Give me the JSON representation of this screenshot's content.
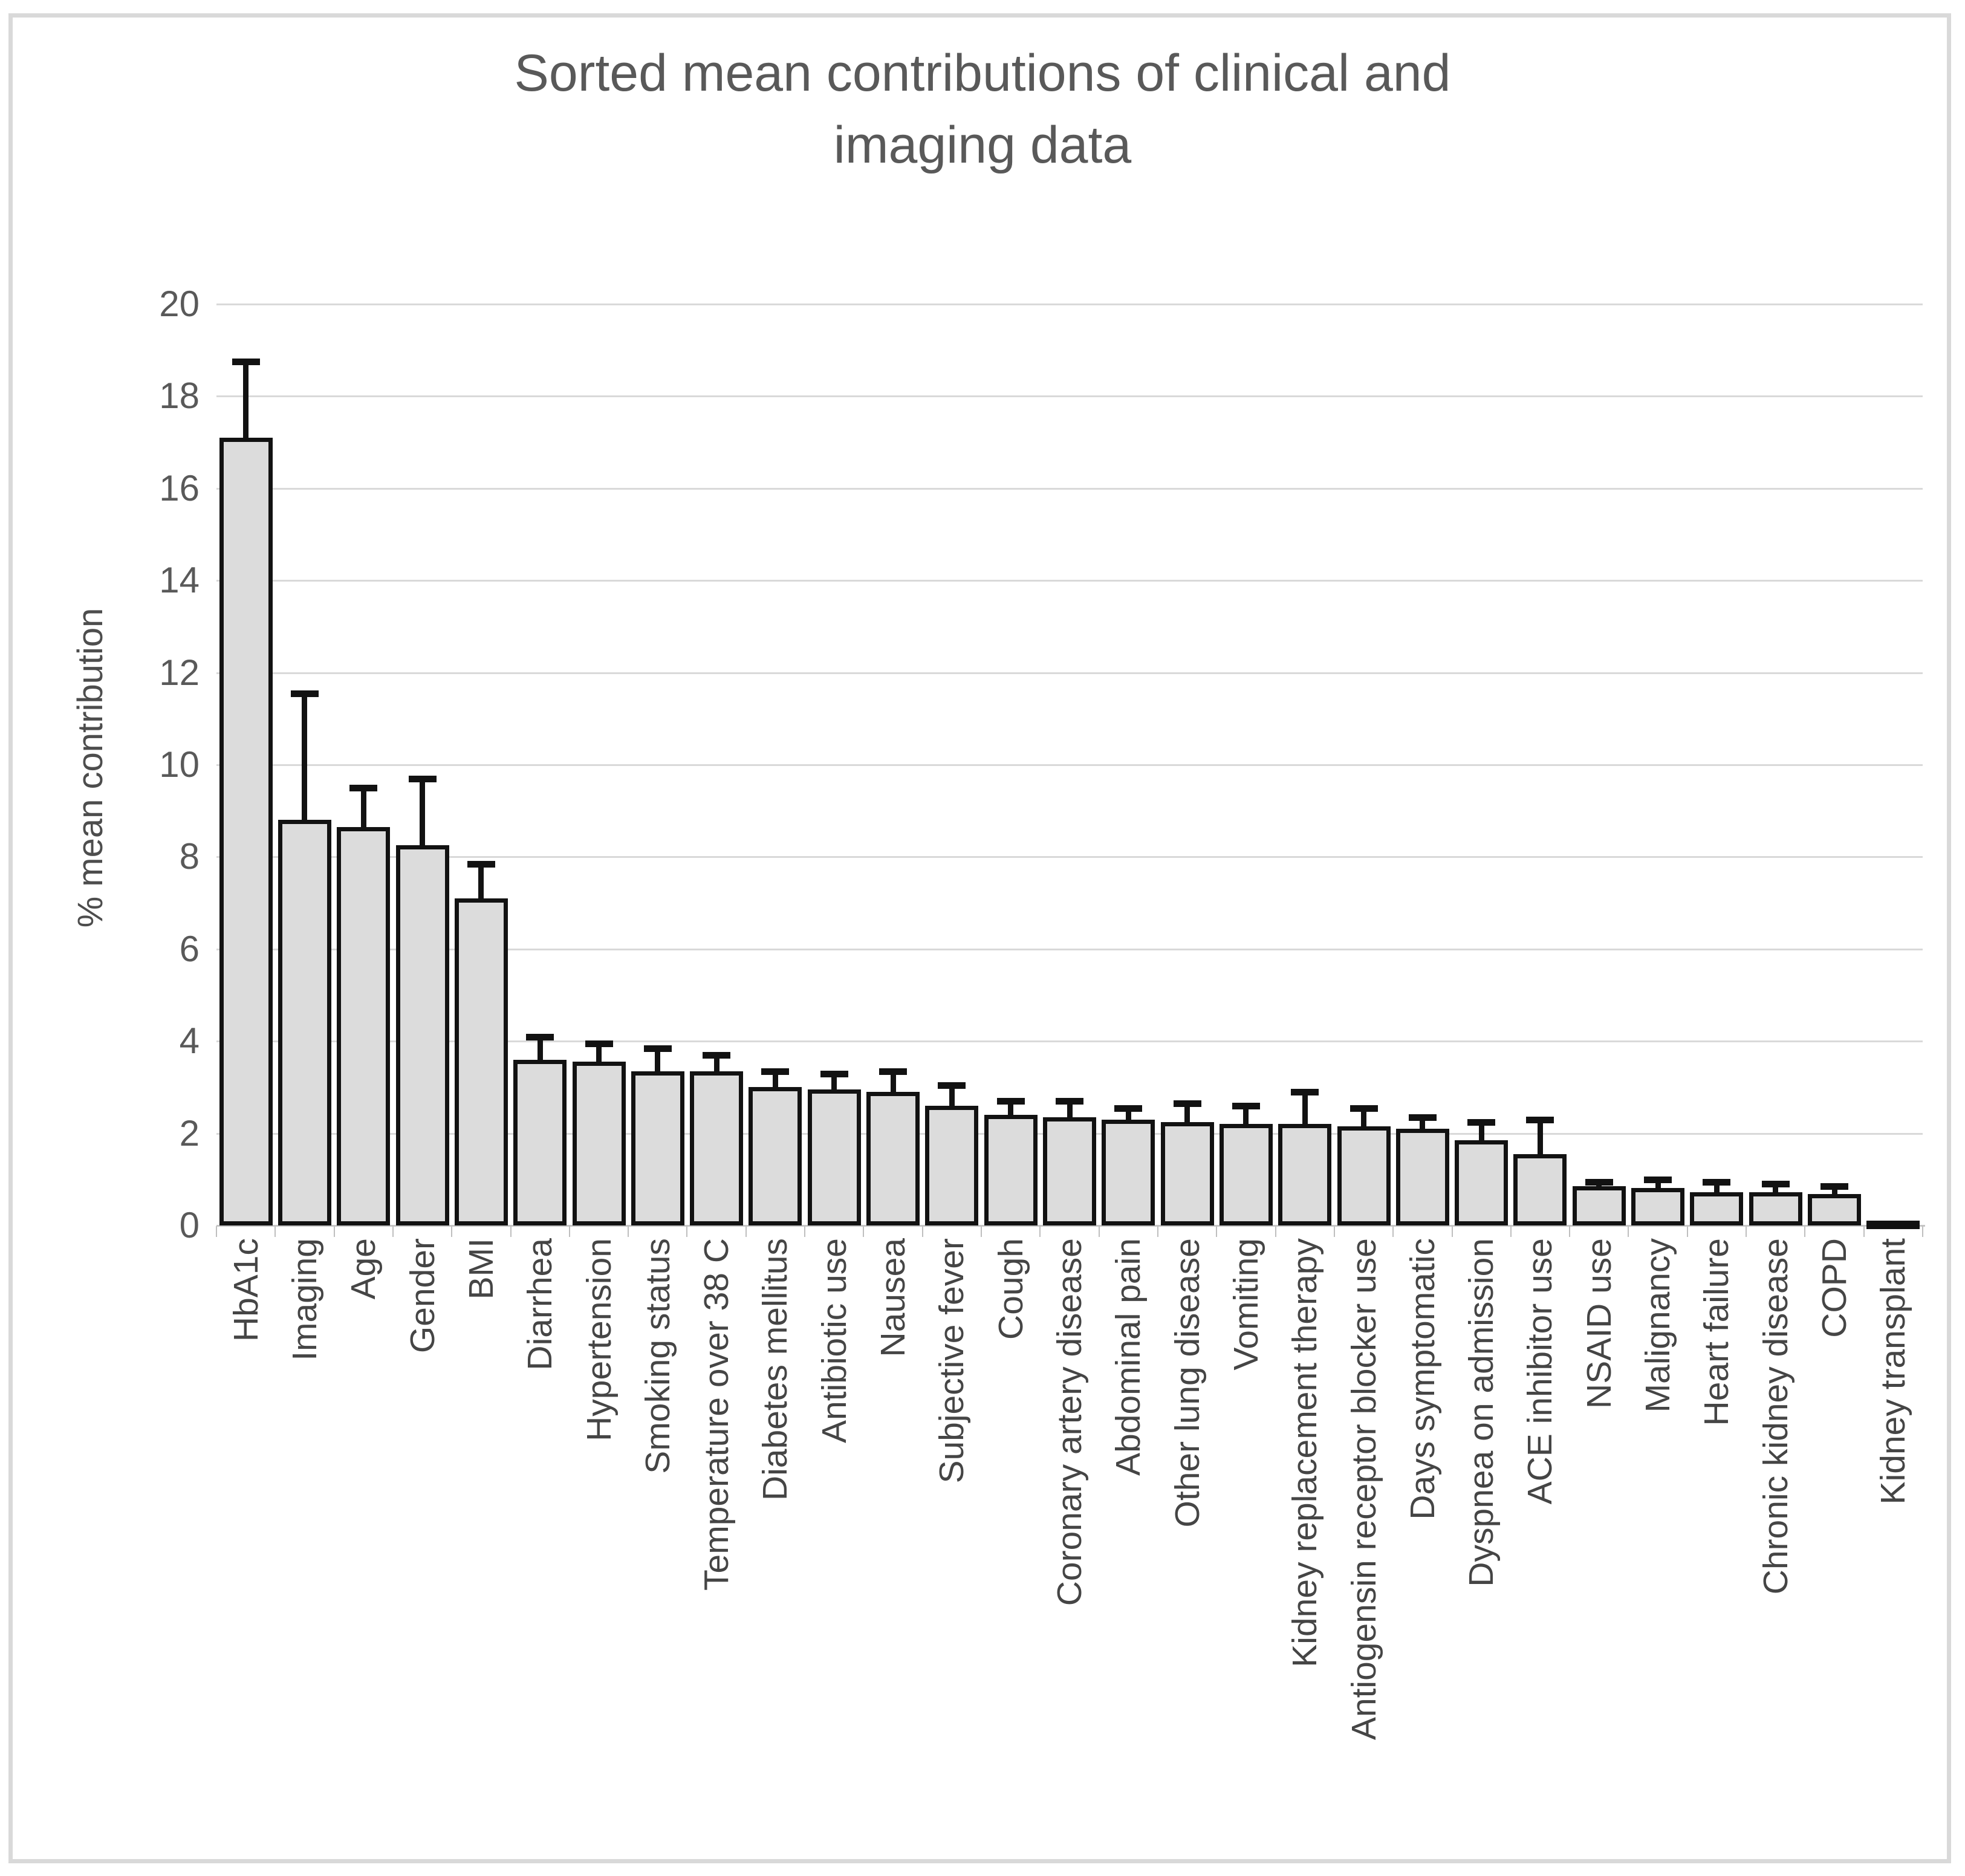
{
  "chart_data": {
    "type": "bar",
    "title": "Sorted mean contributions of clinical and imaging data",
    "title_lines": [
      "Sorted mean contributions of clinical and",
      "imaging data"
    ],
    "xlabel": "",
    "ylabel": "% mean contribution",
    "ylim": [
      0,
      20
    ],
    "ytick_step": 2,
    "yticks": [
      0,
      2,
      4,
      6,
      8,
      10,
      12,
      14,
      16,
      18,
      20
    ],
    "grid": "horizontal-only",
    "legend_position": "none",
    "bar_fill_color": "#dcdcdc",
    "bar_border_color": "#121212",
    "gridline_color": "#d9d9d9",
    "text_color": "#595959",
    "error_bar_style": "plus-only-with-cap",
    "categories": [
      "HbA1c",
      "Imaging",
      "Age",
      "Gender",
      "BMI",
      "Diarrhea",
      "Hypertension",
      "Smoking status",
      "Temperature over 38 C",
      "Diabetes mellitus",
      "Antibiotic use",
      "Nausea",
      "Subjective fever",
      "Cough",
      "Coronary artery disease",
      "Abdominal pain",
      "Other lung disease",
      "Vomiting",
      "Kidney replacement therapy",
      "Antiogensin receptor blocker use",
      "Days symptomatic",
      "Dyspnea on admission",
      "ACE inhibitor use",
      "NSAID use",
      "Malignancy",
      "Heart failure",
      "Chronic kidney disease",
      "COPD",
      "Kidney transplant"
    ],
    "series": [
      {
        "name": "% mean contribution",
        "values": [
          17.1,
          8.8,
          8.65,
          8.25,
          7.1,
          3.6,
          3.55,
          3.35,
          3.35,
          3.0,
          2.95,
          2.9,
          2.6,
          2.4,
          2.35,
          2.3,
          2.25,
          2.2,
          2.2,
          2.15,
          2.1,
          1.85,
          1.55,
          0.85,
          0.82,
          0.72,
          0.72,
          0.68,
          0.1
        ],
        "error_plus": [
          1.65,
          2.75,
          0.85,
          1.45,
          0.75,
          0.5,
          0.4,
          0.5,
          0.35,
          0.35,
          0.35,
          0.45,
          0.45,
          0.3,
          0.35,
          0.25,
          0.4,
          0.4,
          0.7,
          0.4,
          0.25,
          0.4,
          0.75,
          0.1,
          0.18,
          0.23,
          0.18,
          0.17,
          0.0
        ]
      }
    ]
  }
}
